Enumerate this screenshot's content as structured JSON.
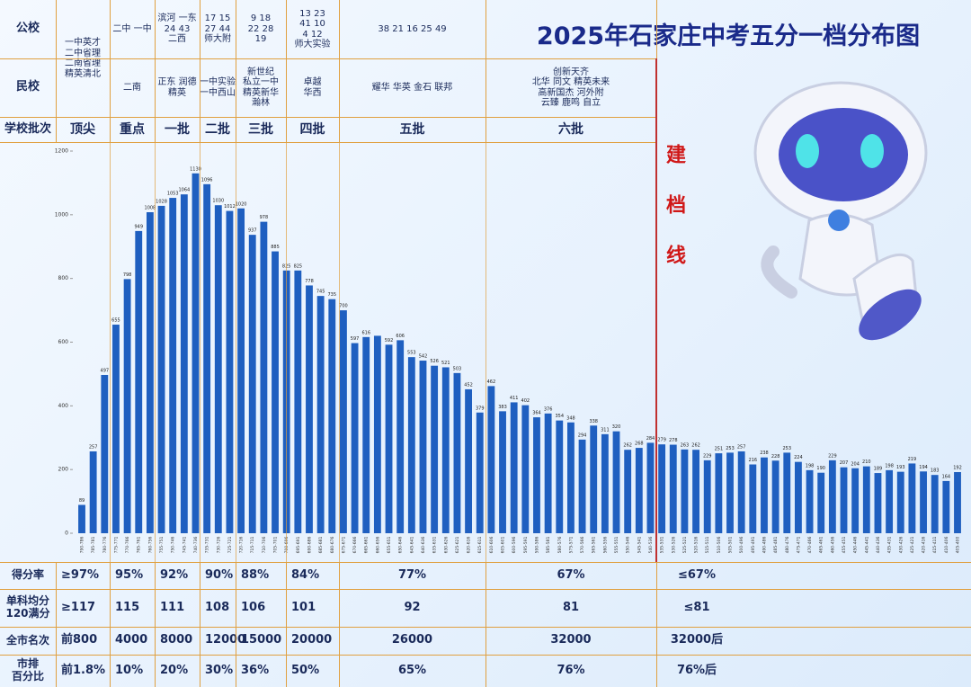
{
  "chart_data": {
    "type": "bar",
    "title": "2025年石家庄中考五分一档分布图",
    "categories": [
      "790-786",
      "785-781",
      "780-776",
      "775-771",
      "770-766",
      "765-761",
      "760-756",
      "755-751",
      "750-746",
      "745-741",
      "740-736",
      "735-731",
      "730-726",
      "725-721",
      "720-716",
      "715-711",
      "710-706",
      "705-701",
      "700-696",
      "695-691",
      "690-686",
      "685-681",
      "680-676",
      "675-671",
      "670-666",
      "665-661",
      "660-656",
      "655-651",
      "650-646",
      "645-641",
      "640-636",
      "635-631",
      "630-626",
      "625-621",
      "620-616",
      "615-611",
      "610-606",
      "605-601",
      "600-596",
      "595-591",
      "590-586",
      "585-581",
      "580-576",
      "575-571",
      "570-566",
      "565-561",
      "560-556",
      "555-551",
      "550-546",
      "545-541",
      "540-536",
      "535-531",
      "530-526",
      "525-521",
      "520-516",
      "515-511",
      "510-506",
      "505-501",
      "500-496",
      "495-491",
      "490-486",
      "485-481",
      "480-476",
      "475-471",
      "470-466",
      "465-461",
      "460-456",
      "455-451",
      "450-446",
      "445-441",
      "440-436",
      "435-431",
      "430-426",
      "425-421",
      "420-416",
      "415-411",
      "410-406",
      "405-400"
    ],
    "values": [
      89,
      257,
      497,
      655,
      798,
      949,
      1008,
      1028,
      1053,
      1064,
      1130,
      1096,
      1030,
      1012,
      1020,
      937,
      978,
      885,
      825,
      825,
      778,
      745,
      735,
      700,
      597,
      616,
      620,
      592,
      606,
      553,
      542,
      526,
      521,
      503,
      452,
      379,
      462,
      383,
      411,
      402,
      364,
      376,
      354,
      348,
      294,
      338,
      311,
      320,
      262,
      268,
      284,
      279,
      278,
      263,
      262,
      229,
      251,
      253,
      257,
      216,
      238,
      228,
      253,
      224,
      198,
      190,
      229,
      207,
      204,
      210,
      189,
      198,
      193,
      219,
      194,
      183,
      164,
      192
    ],
    "value_labels": [
      "89",
      "257",
      "497",
      "655",
      "798",
      "949",
      "1008",
      "1028",
      "1053",
      "1064",
      "1130",
      "1096",
      "1030",
      "1012",
      "1020",
      "937",
      "978",
      "885",
      "825",
      "825",
      "778",
      "745",
      "735",
      "700",
      "597",
      "616",
      null,
      "592",
      "606",
      "553",
      "542",
      "526",
      "521",
      "503",
      "452",
      "379",
      "462",
      "383",
      "411",
      "402",
      "364",
      "376",
      "354",
      "348",
      "294",
      "338",
      "311",
      "320",
      "262",
      "268",
      "284",
      "279",
      "278",
      "263",
      "262",
      "229",
      "251",
      "253",
      "257",
      "216",
      "238",
      "228",
      "253",
      "224",
      "198",
      "190",
      "229",
      "207",
      "204",
      "210",
      "189",
      "198",
      "193",
      "219",
      "194",
      "183",
      "164",
      "192"
    ],
    "color": "#1f5fc0",
    "ylim": [
      0,
      1200
    ],
    "yticks": [
      0,
      200,
      400,
      600,
      800,
      1000,
      1200
    ],
    "grid": false
  },
  "header": {
    "row_labels": [
      "公校",
      "民校",
      "学校批次"
    ],
    "columns": [
      {
        "tier": "顶尖",
        "public": [
          "一中英才",
          "二中省理",
          "二南省理",
          "精英清北"
        ],
        "private": []
      },
      {
        "tier": "重点",
        "public": [
          "二中 一中"
        ],
        "private": [
          "二南"
        ]
      },
      {
        "tier": "一批",
        "public": [
          "滨河 一东",
          "24 43",
          "二西"
        ],
        "private": [
          "正东 润德",
          "精英"
        ]
      },
      {
        "tier": "二批",
        "public": [
          "17 15",
          "27 44",
          "师大附"
        ],
        "private": [
          "一中实验",
          "一中西山"
        ]
      },
      {
        "tier": "三批",
        "public": [
          "9 18",
          "22 28",
          "19"
        ],
        "private": [
          "新世纪",
          "私立一中",
          "精英新华",
          "瀚林"
        ]
      },
      {
        "tier": "四批",
        "public": [
          "13 23",
          "41 10",
          "4 12",
          "师大实验"
        ],
        "private": [
          "卓越",
          "华西"
        ]
      },
      {
        "tier": "五批",
        "public": [
          "38 21 16 25 49"
        ],
        "private": [
          "耀华 华英 金石 联邦"
        ]
      },
      {
        "tier": "六批",
        "public": [],
        "private": [
          "创新天齐",
          "北华 同文 精英未来",
          "高新国杰 河外附",
          "云臻 鹿鸣 自立"
        ]
      }
    ],
    "cutoff": "建档线"
  },
  "footer": {
    "rows": [
      {
        "label": [
          "得分率"
        ],
        "cells": [
          "≥97%",
          "95%",
          "92%",
          "90%",
          "88%",
          "84%",
          "77%",
          "67%",
          "≤67%"
        ]
      },
      {
        "label": [
          "单科均分",
          "120满分"
        ],
        "cells": [
          "≥117",
          "115",
          "111",
          "108",
          "106",
          "101",
          "92",
          "81",
          "≤81"
        ]
      },
      {
        "label": [
          "全市名次"
        ],
        "cells": [
          "前800",
          "4000",
          "8000",
          "12000",
          "15000",
          "20000",
          "26000",
          "32000",
          "32000后"
        ]
      },
      {
        "label": [
          "市排",
          "百分比"
        ],
        "cells": [
          "前1.8%",
          "10%",
          "20%",
          "30%",
          "36%",
          "50%",
          "65%",
          "76%",
          "76%后"
        ]
      }
    ]
  }
}
